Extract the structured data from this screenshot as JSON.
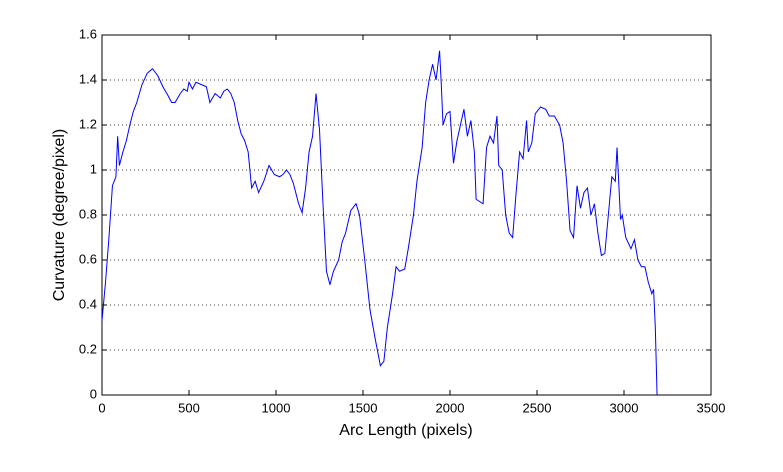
{
  "chart_data": {
    "type": "line",
    "xlabel": "Arc Length (pixels)",
    "ylabel": "Curvature (degree/pixel)",
    "x": [
      0,
      20,
      40,
      60,
      80,
      90,
      100,
      120,
      140,
      160,
      180,
      200,
      230,
      260,
      290,
      320,
      350,
      380,
      400,
      420,
      450,
      470,
      490,
      500,
      520,
      540,
      570,
      600,
      620,
      650,
      680,
      700,
      720,
      740,
      760,
      780,
      800,
      820,
      840,
      860,
      880,
      900,
      930,
      960,
      990,
      1020,
      1040,
      1060,
      1080,
      1100,
      1130,
      1150,
      1170,
      1190,
      1210,
      1230,
      1250,
      1270,
      1290,
      1310,
      1330,
      1360,
      1380,
      1400,
      1430,
      1460,
      1480,
      1510,
      1540,
      1570,
      1600,
      1620,
      1640,
      1670,
      1690,
      1710,
      1740,
      1760,
      1790,
      1810,
      1840,
      1860,
      1880,
      1900,
      1920,
      1940,
      1950,
      1960,
      1980,
      2000,
      2020,
      2040,
      2060,
      2080,
      2100,
      2120,
      2140,
      2150,
      2170,
      2190,
      2210,
      2230,
      2250,
      2270,
      2280,
      2300,
      2320,
      2340,
      2360,
      2380,
      2400,
      2420,
      2440,
      2450,
      2470,
      2490,
      2520,
      2550,
      2570,
      2600,
      2630,
      2650,
      2670,
      2690,
      2710,
      2730,
      2750,
      2770,
      2790,
      2810,
      2830,
      2850,
      2870,
      2890,
      2910,
      2930,
      2950,
      2960,
      2980,
      2990,
      3010,
      3040,
      3060,
      3080,
      3100,
      3120,
      3140,
      3160,
      3170,
      3180,
      3190
    ],
    "values": [
      0.33,
      0.5,
      0.7,
      0.93,
      0.97,
      1.15,
      1.02,
      1.08,
      1.13,
      1.2,
      1.26,
      1.3,
      1.38,
      1.43,
      1.45,
      1.42,
      1.37,
      1.33,
      1.3,
      1.3,
      1.34,
      1.36,
      1.35,
      1.39,
      1.36,
      1.39,
      1.38,
      1.37,
      1.3,
      1.34,
      1.32,
      1.35,
      1.36,
      1.34,
      1.3,
      1.22,
      1.16,
      1.13,
      1.08,
      0.92,
      0.95,
      0.9,
      0.95,
      1.02,
      0.98,
      0.97,
      0.98,
      1.0,
      0.98,
      0.94,
      0.85,
      0.81,
      0.92,
      1.08,
      1.15,
      1.34,
      1.18,
      0.85,
      0.55,
      0.49,
      0.55,
      0.6,
      0.68,
      0.72,
      0.82,
      0.85,
      0.8,
      0.6,
      0.38,
      0.25,
      0.13,
      0.15,
      0.3,
      0.45,
      0.57,
      0.55,
      0.56,
      0.65,
      0.8,
      0.95,
      1.1,
      1.3,
      1.4,
      1.47,
      1.4,
      1.53,
      1.38,
      1.2,
      1.25,
      1.26,
      1.03,
      1.13,
      1.2,
      1.27,
      1.15,
      1.22,
      1.08,
      0.87,
      0.86,
      0.85,
      1.1,
      1.15,
      1.12,
      1.24,
      1.02,
      1.0,
      0.8,
      0.72,
      0.7,
      0.9,
      1.08,
      1.05,
      1.22,
      1.08,
      1.12,
      1.25,
      1.28,
      1.27,
      1.24,
      1.24,
      1.2,
      1.12,
      0.95,
      0.73,
      0.7,
      0.93,
      0.83,
      0.9,
      0.92,
      0.8,
      0.85,
      0.72,
      0.62,
      0.63,
      0.8,
      0.97,
      0.95,
      1.1,
      0.78,
      0.8,
      0.7,
      0.65,
      0.69,
      0.6,
      0.57,
      0.57,
      0.5,
      0.45,
      0.47,
      0.3,
      0.0
    ],
    "color": "#0000ff",
    "xlim": [
      0,
      3500
    ],
    "ylim": [
      0,
      1.6
    ],
    "xticks": [
      0,
      500,
      1000,
      1500,
      2000,
      2500,
      3000,
      3500
    ],
    "yticks": [
      0,
      0.2,
      0.4,
      0.6,
      0.8,
      1,
      1.2,
      1.4,
      1.6
    ],
    "grid": true
  }
}
